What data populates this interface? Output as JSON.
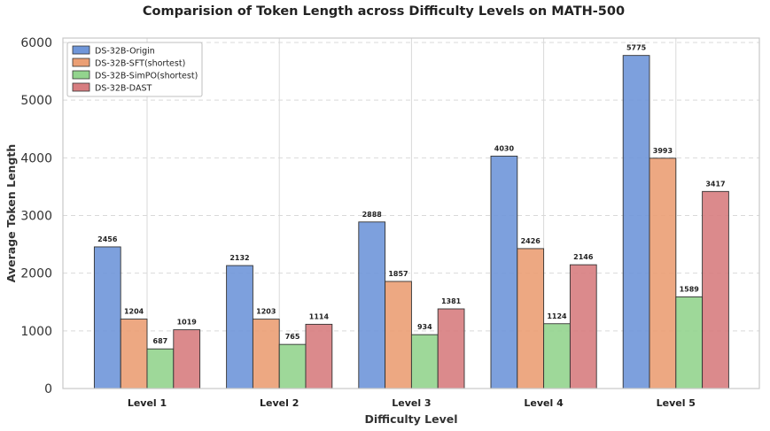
{
  "chart_data": {
    "type": "bar",
    "title": "Comparision of Token Length across Difficulty Levels on MATH-500",
    "xlabel": "Difficulty Level",
    "ylabel": "Average Token Length",
    "categories": [
      "Level 1",
      "Level 2",
      "Level 3",
      "Level 4",
      "Level 5"
    ],
    "ylim": [
      0,
      6000
    ],
    "yticks": [
      0,
      1000,
      2000,
      3000,
      4000,
      5000,
      6000
    ],
    "grid": true,
    "legend_position": "top-left",
    "series": [
      {
        "name": "DS-32B-Origin",
        "color": "#6f96d9",
        "values": [
          2456,
          2132,
          2888,
          4030,
          5775
        ]
      },
      {
        "name": "DS-32B-SFT(shortest)",
        "color": "#eb9f74",
        "values": [
          1204,
          1203,
          1857,
          2426,
          3993
        ]
      },
      {
        "name": "DS-32B-SimPO(shortest)",
        "color": "#93d48e",
        "values": [
          687,
          765,
          934,
          1124,
          1589
        ]
      },
      {
        "name": "DS-32B-DAST",
        "color": "#d77d80",
        "values": [
          1019,
          1114,
          1381,
          2146,
          3417
        ]
      }
    ]
  }
}
